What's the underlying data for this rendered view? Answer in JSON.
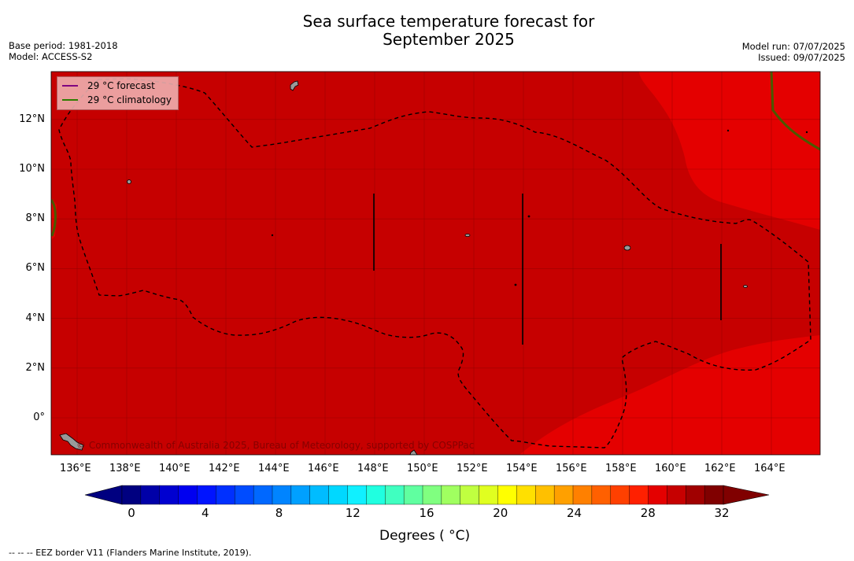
{
  "title": {
    "line1": "Sea surface temperature forecast for",
    "line2": "September 2025"
  },
  "meta_left": {
    "base_period": "Base period: 1981-2018",
    "model": "Model: ACCESS-S2"
  },
  "meta_right": {
    "model_run": "Model run: 07/07/2025",
    "issued": "Issued: 09/07/2025"
  },
  "legend": {
    "items": [
      {
        "label": "29 °C  forecast",
        "color": "#800080"
      },
      {
        "label": "29 °C  climatology",
        "color": "#2e7d00"
      }
    ]
  },
  "map": {
    "lat_labels": [
      "12°N",
      "10°N",
      "8°N",
      "6°N",
      "4°N",
      "2°N",
      "0°"
    ],
    "lon_labels": [
      "136°E",
      "138°E",
      "140°E",
      "142°E",
      "144°E",
      "146°E",
      "148°E",
      "150°E",
      "152°E",
      "154°E",
      "156°E",
      "158°E",
      "160°E",
      "162°E",
      "164°E"
    ],
    "watermark": "© Commonwealth of Australia 2025, Bureau of Meteorology, supported by COSPPac",
    "colors": {
      "zone_28_29": "#e40000",
      "zone_29_30": "#c60000",
      "land": "#999999",
      "contour_forecast": "#000000",
      "contour_climatology": "#4a5a00"
    }
  },
  "colorbar": {
    "tick_labels": [
      "0",
      "4",
      "8",
      "12",
      "16",
      "20",
      "24",
      "28",
      "32"
    ],
    "title": "Degrees ( °C)",
    "colors": [
      "#000080",
      "#0000a8",
      "#0000d0",
      "#0000f0",
      "#0014ff",
      "#0030ff",
      "#004cff",
      "#0068ff",
      "#0084ff",
      "#00a0ff",
      "#00bcff",
      "#00d8ff",
      "#10f0ff",
      "#20ffe0",
      "#40ffc0",
      "#60ffa0",
      "#80ff80",
      "#a0ff60",
      "#c0ff40",
      "#e0ff20",
      "#ffff00",
      "#ffe000",
      "#ffc000",
      "#ffa000",
      "#ff8000",
      "#ff6000",
      "#ff4000",
      "#ff2000",
      "#e40000",
      "#c60000",
      "#a00000",
      "#800000"
    ],
    "min_color": "#000080",
    "max_color": "#800000"
  },
  "footer": {
    "note": "--  --  -- EEZ border V11 (Flanders Marine Institute, 2019)."
  }
}
